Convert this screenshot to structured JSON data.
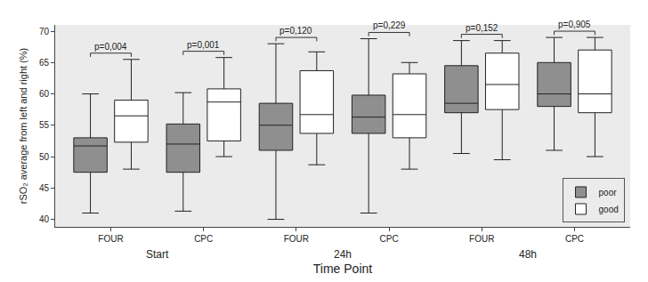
{
  "chart_data": {
    "type": "box",
    "y_label": "rSO₂ average from left and right (%)",
    "x_label": "Time Point",
    "categories": [
      "FOUR",
      "CPC",
      "FOUR",
      "CPC",
      "FOUR",
      "CPC"
    ],
    "group_labels": [
      "Start",
      "24h",
      "48h"
    ],
    "annotations": [
      "p=0,004",
      "p=0,001",
      "p=0,120",
      "p=0,229",
      "p=0,152",
      "p=0,905"
    ],
    "series": [
      {
        "name": "poor",
        "color": "#8f8f8f",
        "min": [
          41.0,
          41.3,
          40.0,
          41.0,
          50.5,
          51.0
        ],
        "q1": [
          47.5,
          47.5,
          51.0,
          53.7,
          57.0,
          58.0
        ],
        "median": [
          51.7,
          52.0,
          55.0,
          56.3,
          58.5,
          60.0
        ],
        "q3": [
          53.0,
          55.2,
          58.5,
          59.8,
          64.5,
          65.0
        ],
        "max": [
          60.0,
          60.2,
          68.0,
          68.8,
          68.5,
          69.0
        ]
      },
      {
        "name": "good",
        "color": "#ffffff",
        "min": [
          48.0,
          50.0,
          48.7,
          48.0,
          49.5,
          50.0
        ],
        "q1": [
          52.3,
          52.5,
          53.7,
          53.0,
          57.5,
          57.0
        ],
        "median": [
          56.5,
          58.7,
          56.7,
          56.7,
          61.5,
          60.0
        ],
        "q3": [
          59.0,
          60.8,
          63.7,
          63.2,
          66.5,
          67.0
        ],
        "max": [
          65.5,
          65.8,
          66.7,
          65.0,
          68.5,
          69.0
        ]
      }
    ],
    "ylim": [
      38.8,
      71
    ],
    "yticks": [
      40,
      45,
      50,
      55,
      60,
      65,
      70
    ],
    "grid": false,
    "legend": "bottom right"
  }
}
